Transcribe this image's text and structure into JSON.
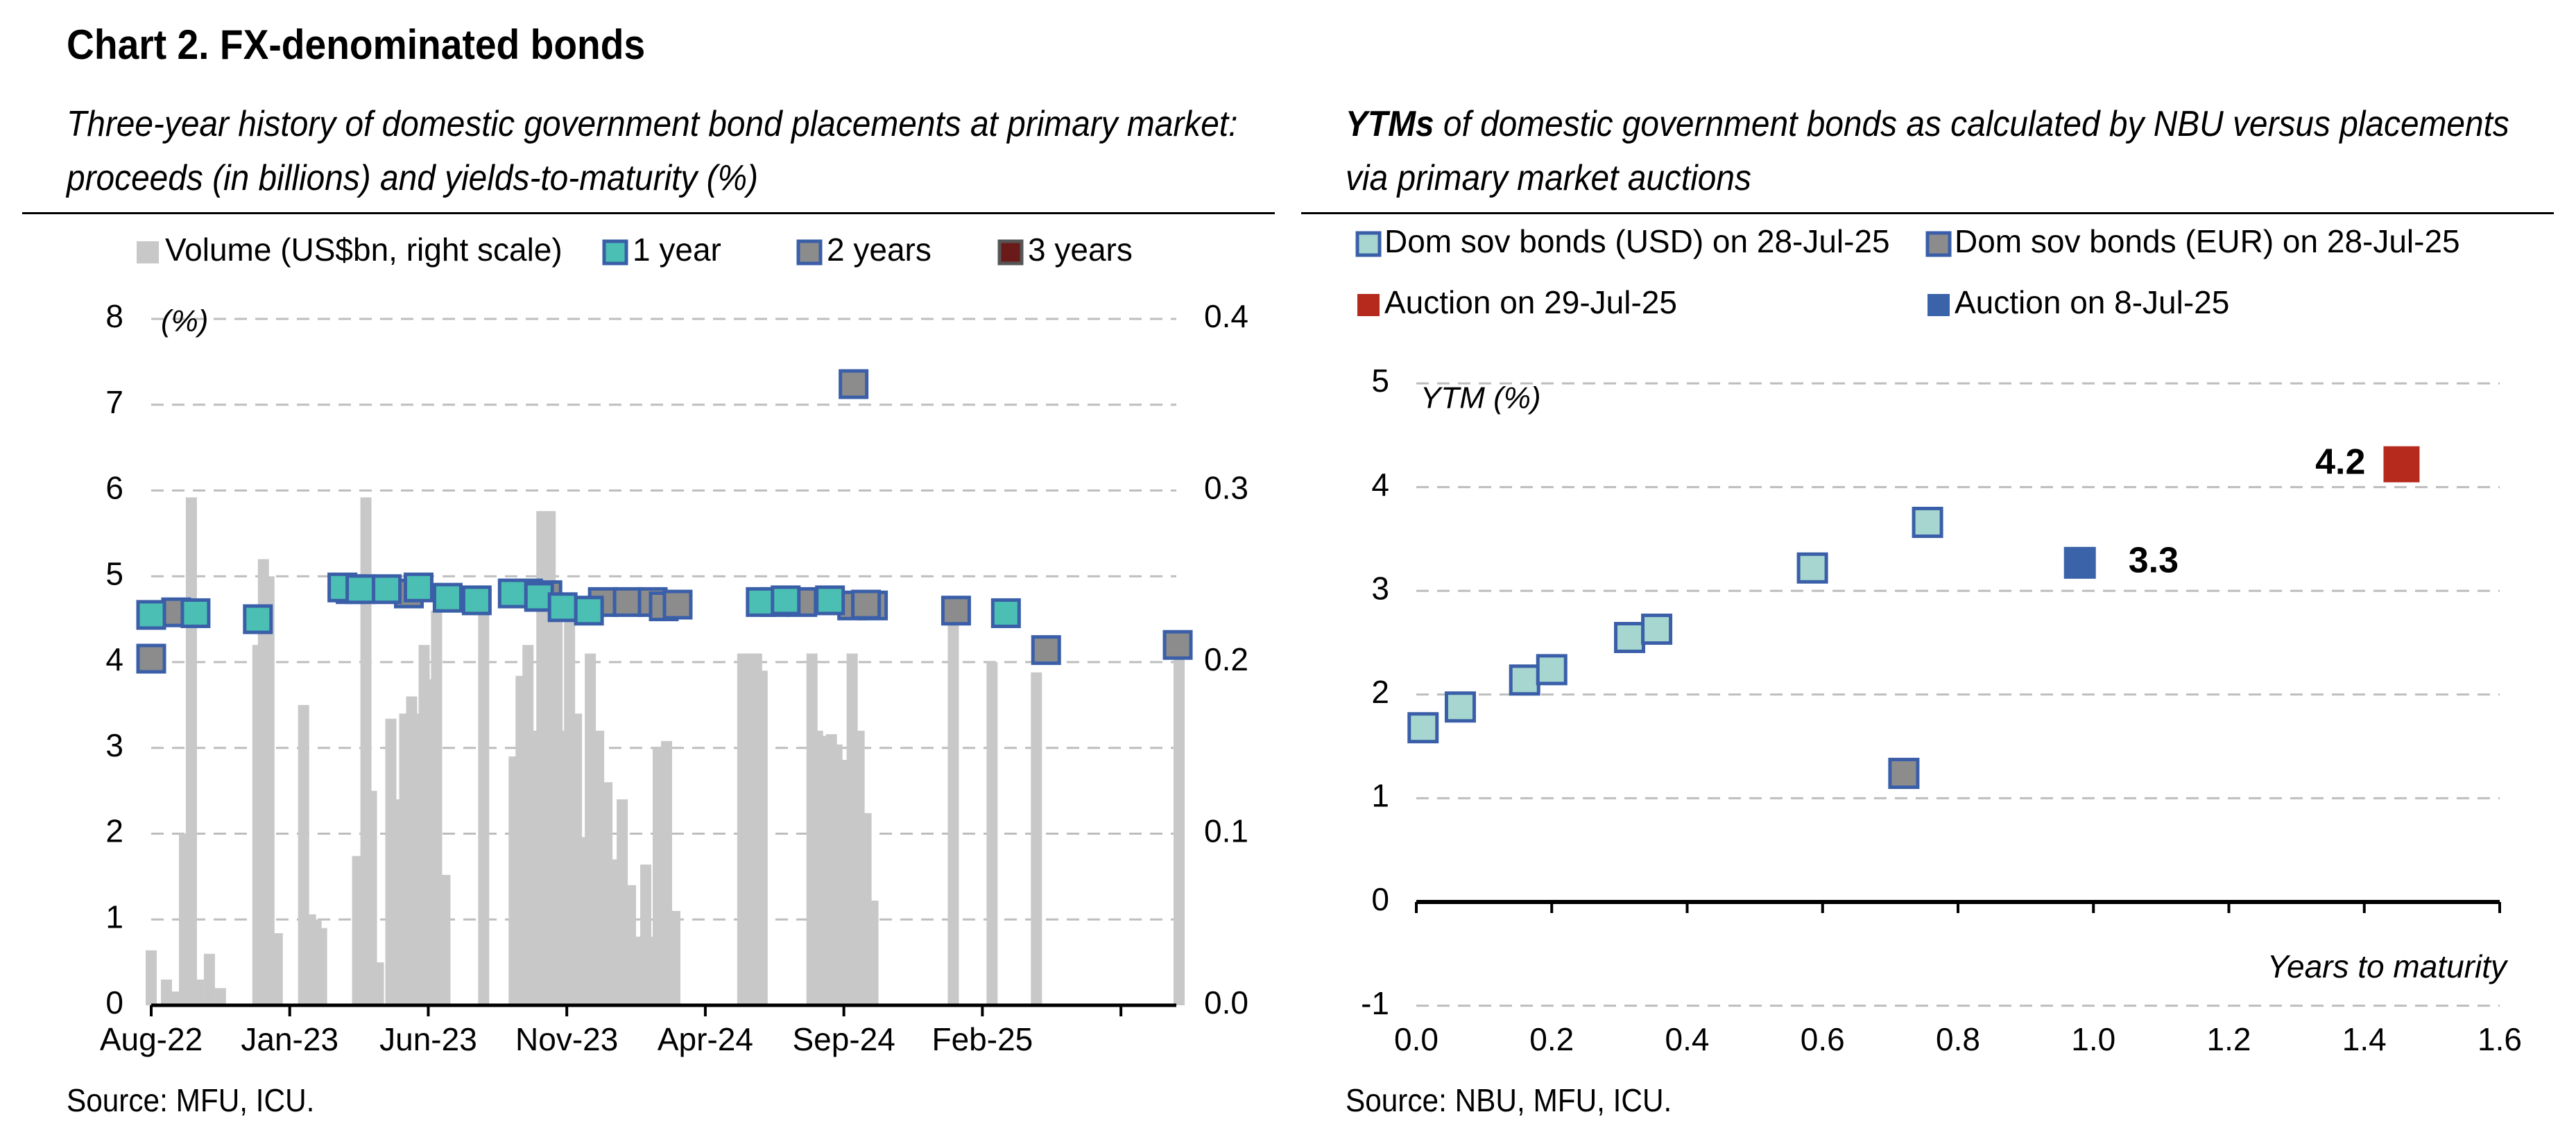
{
  "chart_title": "Chart 2. FX-denominated bonds",
  "left_subtitle_line1": "Three-year history of domestic government bond placements at primary market:",
  "left_subtitle_line2": "proceeds (in billions) and yields-to-maturity (%)",
  "right_subtitle_bold": "YTMs",
  "right_subtitle_rest1": " of domestic government bonds as calculated by NBU versus placements",
  "right_subtitle_line2": "via primary market auctions",
  "left_source": "Source: MFU, ICU.",
  "right_source": "Source: NBU, MFU, ICU.",
  "colors": {
    "volume": "#c8c8c8",
    "one_year": "#4bbfb3",
    "two_years": "#8c8c8c",
    "three_years": "#6b1a1a",
    "marker_border": "#3a5fa8",
    "usd": "#a6d6cf",
    "eur": "#8c8c8c",
    "auction_29jul": "#b52a1c",
    "auction_8jul": "#3a63aa"
  },
  "chart_data": [
    {
      "type": "bar+scatter",
      "legend": [
        "Volume (US$bn, right scale)",
        "1 year",
        "2 years",
        "3 years"
      ],
      "left_axis_label": "(%)",
      "left_axis_ticks": [
        "0",
        "1",
        "2",
        "3",
        "4",
        "5",
        "6",
        "7",
        "8"
      ],
      "ylim_left": [
        0,
        8
      ],
      "right_axis_ticks": [
        "0.0",
        "0.1",
        "0.2",
        "0.3",
        "0.4"
      ],
      "ylim_right": [
        0,
        0.4
      ],
      "x_tick_labels": [
        "Aug-22",
        "Jan-23",
        "Jun-23",
        "Nov-23",
        "Apr-24",
        "Sep-24",
        "Feb-25"
      ],
      "x_tick_months": [
        0,
        5,
        10,
        15,
        20,
        25,
        30
      ],
      "xlim_months": [
        0,
        37
      ],
      "grid": "horizontal dashed",
      "volume_bars": [
        {
          "t": 0.0,
          "v": 0.032
        },
        {
          "t": 0.55,
          "v": 0.015
        },
        {
          "t": 0.85,
          "v": 0.008
        },
        {
          "t": 1.2,
          "v": 0.1
        },
        {
          "t": 1.45,
          "v": 0.296
        },
        {
          "t": 1.7,
          "v": 0.015
        },
        {
          "t": 2.1,
          "v": 0.03
        },
        {
          "t": 2.5,
          "v": 0.01
        },
        {
          "t": 3.85,
          "v": 0.21
        },
        {
          "t": 4.05,
          "v": 0.26
        },
        {
          "t": 4.25,
          "v": 0.25
        },
        {
          "t": 4.55,
          "v": 0.042
        },
        {
          "t": 5.5,
          "v": 0.175
        },
        {
          "t": 5.75,
          "v": 0.053
        },
        {
          "t": 5.95,
          "v": 0.05
        },
        {
          "t": 6.15,
          "v": 0.045
        },
        {
          "t": 7.45,
          "v": 0.087
        },
        {
          "t": 7.75,
          "v": 0.296
        },
        {
          "t": 7.95,
          "v": 0.125
        },
        {
          "t": 8.2,
          "v": 0.025
        },
        {
          "t": 8.65,
          "v": 0.167
        },
        {
          "t": 8.95,
          "v": 0.12
        },
        {
          "t": 9.15,
          "v": 0.17
        },
        {
          "t": 9.4,
          "v": 0.18
        },
        {
          "t": 9.6,
          "v": 0.17
        },
        {
          "t": 9.85,
          "v": 0.21
        },
        {
          "t": 10.1,
          "v": 0.19
        },
        {
          "t": 10.3,
          "v": 0.23
        },
        {
          "t": 10.6,
          "v": 0.076
        },
        {
          "t": 12.0,
          "v": 0.235
        },
        {
          "t": 13.1,
          "v": 0.145
        },
        {
          "t": 13.35,
          "v": 0.192
        },
        {
          "t": 13.6,
          "v": 0.21
        },
        {
          "t": 13.85,
          "v": 0.16
        },
        {
          "t": 14.1,
          "v": 0.288
        },
        {
          "t": 14.4,
          "v": 0.288
        },
        {
          "t": 14.65,
          "v": 0.235
        },
        {
          "t": 14.85,
          "v": 0.16
        },
        {
          "t": 15.1,
          "v": 0.227
        },
        {
          "t": 15.35,
          "v": 0.17
        },
        {
          "t": 15.55,
          "v": 0.098
        },
        {
          "t": 15.85,
          "v": 0.205
        },
        {
          "t": 16.15,
          "v": 0.16
        },
        {
          "t": 16.45,
          "v": 0.13
        },
        {
          "t": 16.75,
          "v": 0.085
        },
        {
          "t": 17.0,
          "v": 0.12
        },
        {
          "t": 17.3,
          "v": 0.07
        },
        {
          "t": 17.55,
          "v": 0.04
        },
        {
          "t": 17.85,
          "v": 0.082
        },
        {
          "t": 18.05,
          "v": 0.04
        },
        {
          "t": 18.3,
          "v": 0.15
        },
        {
          "t": 18.6,
          "v": 0.154
        },
        {
          "t": 18.9,
          "v": 0.055
        },
        {
          "t": 21.35,
          "v": 0.205
        },
        {
          "t": 21.6,
          "v": 0.205
        },
        {
          "t": 21.85,
          "v": 0.205
        },
        {
          "t": 22.05,
          "v": 0.195
        },
        {
          "t": 23.85,
          "v": 0.205
        },
        {
          "t": 24.05,
          "v": 0.16
        },
        {
          "t": 24.3,
          "v": 0.157
        },
        {
          "t": 24.55,
          "v": 0.158
        },
        {
          "t": 24.75,
          "v": 0.152
        },
        {
          "t": 25.05,
          "v": 0.143
        },
        {
          "t": 25.3,
          "v": 0.205
        },
        {
          "t": 25.55,
          "v": 0.16
        },
        {
          "t": 25.8,
          "v": 0.112
        },
        {
          "t": 26.05,
          "v": 0.061
        },
        {
          "t": 28.95,
          "v": 0.23
        },
        {
          "t": 30.35,
          "v": 0.2
        },
        {
          "t": 31.95,
          "v": 0.194
        },
        {
          "t": 37.1,
          "v": 0.205
        }
      ],
      "one_year": [
        {
          "t": 0.0,
          "y": 4.55
        },
        {
          "t": 1.6,
          "y": 4.57
        },
        {
          "t": 3.85,
          "y": 4.5
        },
        {
          "t": 6.9,
          "y": 4.87
        },
        {
          "t": 7.55,
          "y": 4.85
        },
        {
          "t": 8.5,
          "y": 4.85
        },
        {
          "t": 9.65,
          "y": 4.87
        },
        {
          "t": 10.7,
          "y": 4.75
        },
        {
          "t": 11.75,
          "y": 4.72
        },
        {
          "t": 13.05,
          "y": 4.8
        },
        {
          "t": 14.0,
          "y": 4.76
        },
        {
          "t": 14.85,
          "y": 4.64
        },
        {
          "t": 15.8,
          "y": 4.6
        },
        {
          "t": 22.0,
          "y": 4.7
        },
        {
          "t": 22.9,
          "y": 4.72
        },
        {
          "t": 24.5,
          "y": 4.72
        },
        {
          "t": 30.85,
          "y": 4.57
        }
      ],
      "two_years": [
        {
          "t": 0.0,
          "y": 4.04
        },
        {
          "t": 0.9,
          "y": 4.58
        },
        {
          "t": 7.2,
          "y": 4.85
        },
        {
          "t": 9.3,
          "y": 4.8
        },
        {
          "t": 13.6,
          "y": 4.8
        },
        {
          "t": 14.3,
          "y": 4.78
        },
        {
          "t": 16.3,
          "y": 4.7
        },
        {
          "t": 17.2,
          "y": 4.7
        },
        {
          "t": 18.1,
          "y": 4.7
        },
        {
          "t": 18.5,
          "y": 4.65
        },
        {
          "t": 19.0,
          "y": 4.67
        },
        {
          "t": 22.5,
          "y": 4.7
        },
        {
          "t": 23.5,
          "y": 4.7
        },
        {
          "t": 25.3,
          "y": 4.66
        },
        {
          "t": 26.05,
          "y": 4.66
        },
        {
          "t": 25.8,
          "y": 4.67
        },
        {
          "t": 25.35,
          "y": 7.24
        },
        {
          "t": 29.05,
          "y": 4.6
        },
        {
          "t": 32.3,
          "y": 4.14
        },
        {
          "t": 37.05,
          "y": 4.2
        }
      ],
      "three_years": []
    },
    {
      "type": "scatter",
      "legend": [
        "Dom sov bonds (USD) on 28-Jul-25",
        "Dom sov bonds (EUR) on 28-Jul-25",
        "Auction on 29-Jul-25",
        "Auction on 8-Jul-25"
      ],
      "ylabel": "YTM (%)",
      "xlabel": "Years to maturity",
      "xlim": [
        0,
        1.6
      ],
      "ylim": [
        -1,
        5
      ],
      "x_ticks": [
        "0.0",
        "0.2",
        "0.4",
        "0.6",
        "0.8",
        "1.0",
        "1.2",
        "1.4",
        "1.6"
      ],
      "y_ticks": [
        "-1",
        "0",
        "1",
        "2",
        "3",
        "4",
        "5"
      ],
      "grid": "horizontal dashed",
      "usd_points": [
        {
          "x": 0.01,
          "y": 1.68
        },
        {
          "x": 0.065,
          "y": 1.88
        },
        {
          "x": 0.16,
          "y": 2.14
        },
        {
          "x": 0.2,
          "y": 2.24
        },
        {
          "x": 0.315,
          "y": 2.55
        },
        {
          "x": 0.355,
          "y": 2.63
        },
        {
          "x": 0.585,
          "y": 3.22
        },
        {
          "x": 0.755,
          "y": 3.66
        }
      ],
      "eur_points": [
        {
          "x": 0.72,
          "y": 1.24
        }
      ],
      "auction_29jul": [
        {
          "x": 1.455,
          "y": 4.22,
          "label": "4.2"
        }
      ],
      "auction_8jul": [
        {
          "x": 0.98,
          "y": 3.27,
          "label": "3.3"
        }
      ]
    }
  ]
}
